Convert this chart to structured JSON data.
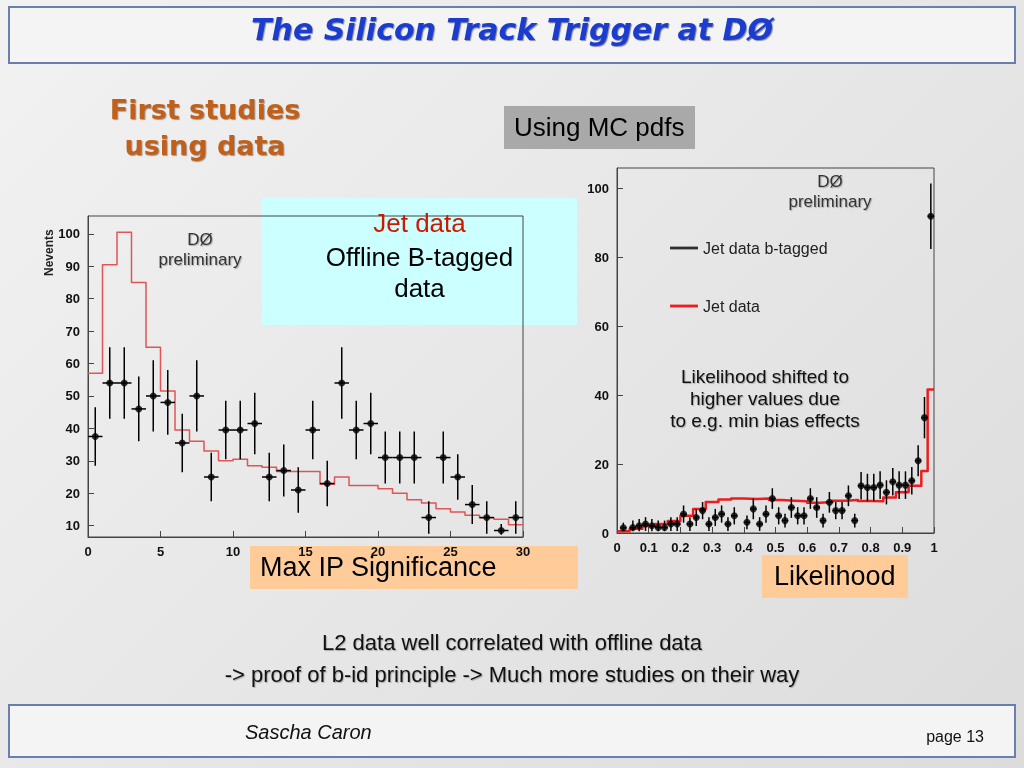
{
  "chart_data": [
    {
      "type": "histogram",
      "title": "The Silicon Track Trigger at DØ",
      "subtitle": "First studies\nusing data",
      "xlabel": "Max IP Significance",
      "ylabel": "Nevents",
      "annotations": [
        "DØ\npreliminary",
        "Jet data",
        "Offline B-tagged\ndata"
      ],
      "xlim": [
        0,
        30
      ],
      "xticks": [
        0,
        5,
        10,
        15,
        20,
        25,
        30
      ],
      "ylim": [
        6.5,
        105.5
      ],
      "yticks": [
        10,
        20,
        30,
        40,
        50,
        60,
        70,
        80,
        90,
        100
      ],
      "marker": "circle",
      "series": [
        {
          "color": "#e05555",
          "bins": [
            0,
            1,
            2,
            3,
            4,
            5,
            6,
            7,
            8,
            9,
            10,
            11,
            12,
            13,
            14,
            15,
            16,
            17,
            18,
            19,
            20,
            21,
            22,
            23,
            24,
            25,
            26,
            27,
            28,
            29,
            30
          ],
          "values": [
            57,
            90.5,
            100.5,
            85,
            65,
            51.5,
            39.5,
            36,
            33,
            30,
            30.5,
            28.5,
            28,
            26.7,
            26.7,
            26.7,
            22.8,
            25,
            22.4,
            22.4,
            21.4,
            20,
            18,
            17,
            15.2,
            14.2,
            13.2,
            12.4,
            12,
            10.3
          ]
        },
        {
          "type": "scatter",
          "color": "#000000",
          "x": [
            0.5,
            1.5,
            2.5,
            3.5,
            4.5,
            5.5,
            6.5,
            7.5,
            8.5,
            9.5,
            10.5,
            11.5,
            12.5,
            13.5,
            14.5,
            15.5,
            16.5,
            17.5,
            18.5,
            19.5,
            20.5,
            21.5,
            22.5,
            23.5,
            24.5,
            25.5,
            26.5,
            27.5,
            28.5,
            29.5
          ],
          "values": [
            37.5,
            54,
            54,
            46,
            50,
            48,
            35.5,
            50,
            25,
            39.5,
            39.5,
            41.5,
            25,
            27,
            21,
            39.5,
            23,
            54,
            39.5,
            41.5,
            31,
            31,
            31,
            12.5,
            31,
            25,
            16.5,
            12.5,
            8.5,
            12.5
          ],
          "errors": [
            9,
            11,
            11,
            10,
            11,
            10,
            9,
            11,
            7.5,
            9,
            9,
            9.5,
            7.5,
            8,
            7,
            9,
            7,
            11,
            9,
            9.5,
            8,
            8,
            8,
            5,
            8,
            7,
            6,
            5,
            [
              7.2,
              10.5
            ],
            5
          ],
          "xerrors": [
            0.5,
            0.5,
            0.5,
            0.5,
            0.5,
            0.5,
            0.5,
            0.5,
            0.5,
            0.5,
            0.5,
            0.5,
            0.5,
            0.5,
            0.5,
            0.5,
            0.5,
            0.5,
            0.5,
            0.5,
            0.5,
            0.5,
            0.5,
            0.5,
            0.5,
            0.5,
            0.5,
            0.5,
            0.5,
            0.5
          ]
        }
      ]
    },
    {
      "type": "histogram",
      "title": "Using MC pdfs",
      "xlabel": "Likelihood",
      "annotations": [
        "DØ\npreliminary",
        "Likelihood shifted to\nhigher values due\nto e.g. min bias effects",
        "L2 data well correlated with offline data",
        "-> proof of b-id principle -> Much more studies on their way",
        "Sascha Caron",
        "page 13"
      ],
      "xlim": [
        0,
        1
      ],
      "xticks": [
        0,
        0.1,
        0.2,
        0.3,
        0.4,
        0.5,
        0.6,
        0.7,
        0.8,
        0.9,
        1
      ],
      "ylim": [
        0,
        106
      ],
      "yticks": [
        0,
        20,
        40,
        60,
        80,
        100
      ],
      "marker": "circle",
      "legend": "top left",
      "series": [
        {
          "type": "scatter",
          "name": "Jet data b-tagged",
          "color": "#000000",
          "x": [
            0.02,
            0.05,
            0.07,
            0.09,
            0.11,
            0.13,
            0.15,
            0.17,
            0.19,
            0.21,
            0.23,
            0.25,
            0.27,
            0.29,
            0.31,
            0.33,
            0.35,
            0.37,
            0.41,
            0.43,
            0.45,
            0.47,
            0.49,
            0.51,
            0.53,
            0.55,
            0.57,
            0.59,
            0.61,
            0.63,
            0.65,
            0.67,
            0.69,
            0.71,
            0.73,
            0.75,
            0.77,
            0.79,
            0.81,
            0.83,
            0.85,
            0.87,
            0.89,
            0.91,
            0.93,
            0.95,
            0.97,
            0.99
          ],
          "values": [
            1.5,
            1.6,
            2.1,
            2.6,
            2.1,
            1.6,
            1.6,
            2.6,
            2.6,
            5.5,
            2.6,
            4.5,
            6.5,
            2.6,
            4.5,
            5.5,
            2.6,
            5,
            3.1,
            7,
            2.6,
            5.5,
            10,
            5,
            3.6,
            7.4,
            5,
            5,
            10,
            7.4,
            3.6,
            8.9,
            6.5,
            6.5,
            10.8,
            3.6,
            13.7,
            13.2,
            13.2,
            13.9,
            11.8,
            14.9,
            13.9,
            13.9,
            15.2,
            21,
            33.5,
            92
          ],
          "errors": [
            [
              0.5,
              3
            ],
            [
              0.5,
              3.6
            ],
            [
              0.5,
              4.1
            ],
            2,
            [
              0.5,
              4.1
            ],
            [
              0.5,
              3.6
            ],
            [
              0.5,
              3.6
            ],
            2,
            2,
            2.5,
            2,
            2.5,
            2.5,
            2,
            2.5,
            2.5,
            2,
            2.5,
            2,
            3,
            2,
            2.5,
            3,
            2.5,
            2,
            3,
            2.5,
            2.5,
            3,
            3,
            2,
            3,
            2.5,
            2.5,
            3,
            2,
            4,
            4,
            4,
            4,
            3.5,
            4,
            4,
            4,
            4,
            4.5,
            6,
            9.5
          ],
          "xerrors": [
            0.01,
            0.01,
            0.01,
            0.01,
            0.01,
            0.01,
            0.01,
            0.01,
            0.01,
            0.01,
            0.01,
            0.01,
            0.01,
            0.01,
            0.01,
            0.01,
            0.01,
            0.01,
            0.01,
            0.01,
            0.01,
            0.01,
            0.01,
            0.01,
            0.01,
            0.01,
            0.01,
            0.01,
            0.01,
            0.01,
            0.01,
            0.01,
            0.01,
            0.01,
            0.01,
            0.01,
            0.01,
            0.01,
            0.01,
            0.01,
            0.01,
            0.01,
            0.01,
            0.01,
            0.01,
            0.01,
            0.01,
            0.01
          ]
        },
        {
          "name": "Jet data",
          "color": "#ee1c1c",
          "bins": [
            0,
            0.04,
            0.08,
            0.12,
            0.16,
            0.2,
            0.24,
            0.28,
            0.32,
            0.36,
            0.4,
            0.44,
            0.48,
            0.52,
            0.56,
            0.6,
            0.64,
            0.68,
            0.72,
            0.76,
            0.8,
            0.84,
            0.88,
            0.92,
            0.96,
            0.98,
            1
          ],
          "values": [
            0.5,
            1.2,
            2,
            2.6,
            3.5,
            5,
            7,
            9,
            9.7,
            10,
            9.9,
            10,
            9.6,
            9.4,
            9.2,
            8.8,
            9,
            9.4,
            9.6,
            9.3,
            9.2,
            10.3,
            11.8,
            13.7,
            18,
            41.7
          ]
        }
      ]
    }
  ]
}
